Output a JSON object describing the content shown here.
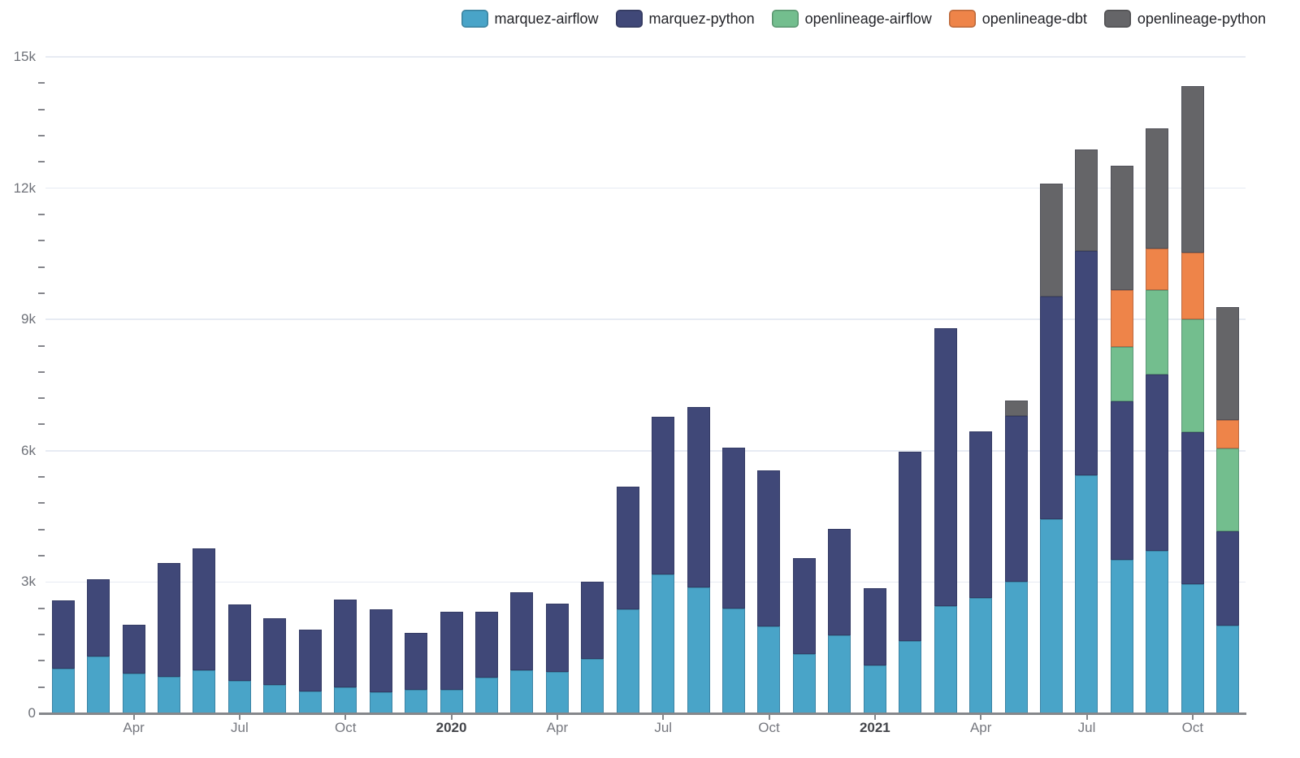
{
  "legend": {
    "items": [
      {
        "label": "marquez-airflow",
        "color": "#49a4c8"
      },
      {
        "label": "marquez-python",
        "color": "#404878"
      },
      {
        "label": "openlineage-airflow",
        "color": "#73be8e"
      },
      {
        "label": "openlineage-dbt",
        "color": "#ee8449"
      },
      {
        "label": "openlineage-python",
        "color": "#656568"
      }
    ]
  },
  "chart_data": {
    "type": "bar",
    "stacked": true,
    "title": "",
    "xlabel": "",
    "ylabel": "",
    "grid": true,
    "legend_position": "top-right",
    "ylim": [
      0,
      15000
    ],
    "y_minor_tick_interval": 600,
    "x": [
      "2019-02",
      "2019-03",
      "2019-04",
      "2019-05",
      "2019-06",
      "2019-07",
      "2019-08",
      "2019-09",
      "2019-10",
      "2019-11",
      "2019-12",
      "2020-01",
      "2020-02",
      "2020-03",
      "2020-04",
      "2020-05",
      "2020-06",
      "2020-07",
      "2020-08",
      "2020-09",
      "2020-10",
      "2020-11",
      "2020-12",
      "2021-01",
      "2021-02",
      "2021-03",
      "2021-04",
      "2021-05",
      "2021-06",
      "2021-07",
      "2021-08",
      "2021-09",
      "2021-10",
      "2021-11"
    ],
    "series": [
      {
        "name": "marquez-airflow",
        "color": "#49a4c8",
        "values": [
          1020,
          1300,
          910,
          830,
          990,
          740,
          650,
          510,
          590,
          490,
          530,
          540,
          820,
          990,
          940,
          1240,
          2370,
          3180,
          2870,
          2390,
          1990,
          1350,
          1790,
          1100,
          1660,
          2460,
          2630,
          3000,
          4430,
          5440,
          3500,
          3720,
          2960,
          2000
        ]
      },
      {
        "name": "marquez-python",
        "color": "#404878",
        "values": [
          1560,
          1770,
          1110,
          2610,
          2770,
          1750,
          1530,
          1410,
          2010,
          1890,
          1300,
          1780,
          1510,
          1780,
          1570,
          1760,
          2810,
          3600,
          4120,
          3680,
          3560,
          2200,
          2430,
          1750,
          4310,
          6340,
          3810,
          3800,
          5090,
          5120,
          3620,
          4030,
          3470,
          2160
        ]
      },
      {
        "name": "openlineage-airflow",
        "color": "#73be8e",
        "values": [
          0,
          0,
          0,
          0,
          0,
          0,
          0,
          0,
          0,
          0,
          0,
          0,
          0,
          0,
          0,
          0,
          0,
          0,
          0,
          0,
          0,
          0,
          0,
          0,
          0,
          0,
          0,
          0,
          0,
          0,
          1250,
          1930,
          2570,
          1890
        ]
      },
      {
        "name": "openlineage-dbt",
        "color": "#ee8449",
        "values": [
          0,
          0,
          0,
          0,
          0,
          0,
          0,
          0,
          0,
          0,
          0,
          0,
          0,
          0,
          0,
          0,
          0,
          0,
          0,
          0,
          0,
          0,
          0,
          0,
          0,
          0,
          0,
          0,
          0,
          0,
          1310,
          940,
          1520,
          660
        ]
      },
      {
        "name": "openlineage-python",
        "color": "#656568",
        "values": [
          0,
          0,
          0,
          0,
          0,
          0,
          0,
          0,
          0,
          0,
          0,
          0,
          0,
          0,
          0,
          0,
          0,
          0,
          0,
          0,
          0,
          0,
          0,
          0,
          0,
          0,
          0,
          340,
          2590,
          2320,
          2830,
          2750,
          3820,
          2580
        ]
      }
    ],
    "yticks": [
      {
        "v": 0,
        "label": "0"
      },
      {
        "v": 3000,
        "label": "3k"
      },
      {
        "v": 6000,
        "label": "6k"
      },
      {
        "v": 9000,
        "label": "9k"
      },
      {
        "v": 12000,
        "label": "12k"
      },
      {
        "v": 15000,
        "label": "15k"
      }
    ],
    "xticks": [
      {
        "i": 2,
        "label": "Apr",
        "bold": false
      },
      {
        "i": 5,
        "label": "Jul",
        "bold": false
      },
      {
        "i": 8,
        "label": "Oct",
        "bold": false
      },
      {
        "i": 11,
        "label": "2020",
        "bold": true
      },
      {
        "i": 14,
        "label": "Apr",
        "bold": false
      },
      {
        "i": 17,
        "label": "Jul",
        "bold": false
      },
      {
        "i": 20,
        "label": "Oct",
        "bold": false
      },
      {
        "i": 23,
        "label": "2021",
        "bold": true
      },
      {
        "i": 26,
        "label": "Apr",
        "bold": false
      },
      {
        "i": 29,
        "label": "Jul",
        "bold": false
      },
      {
        "i": 32,
        "label": "Oct",
        "bold": false
      }
    ]
  }
}
